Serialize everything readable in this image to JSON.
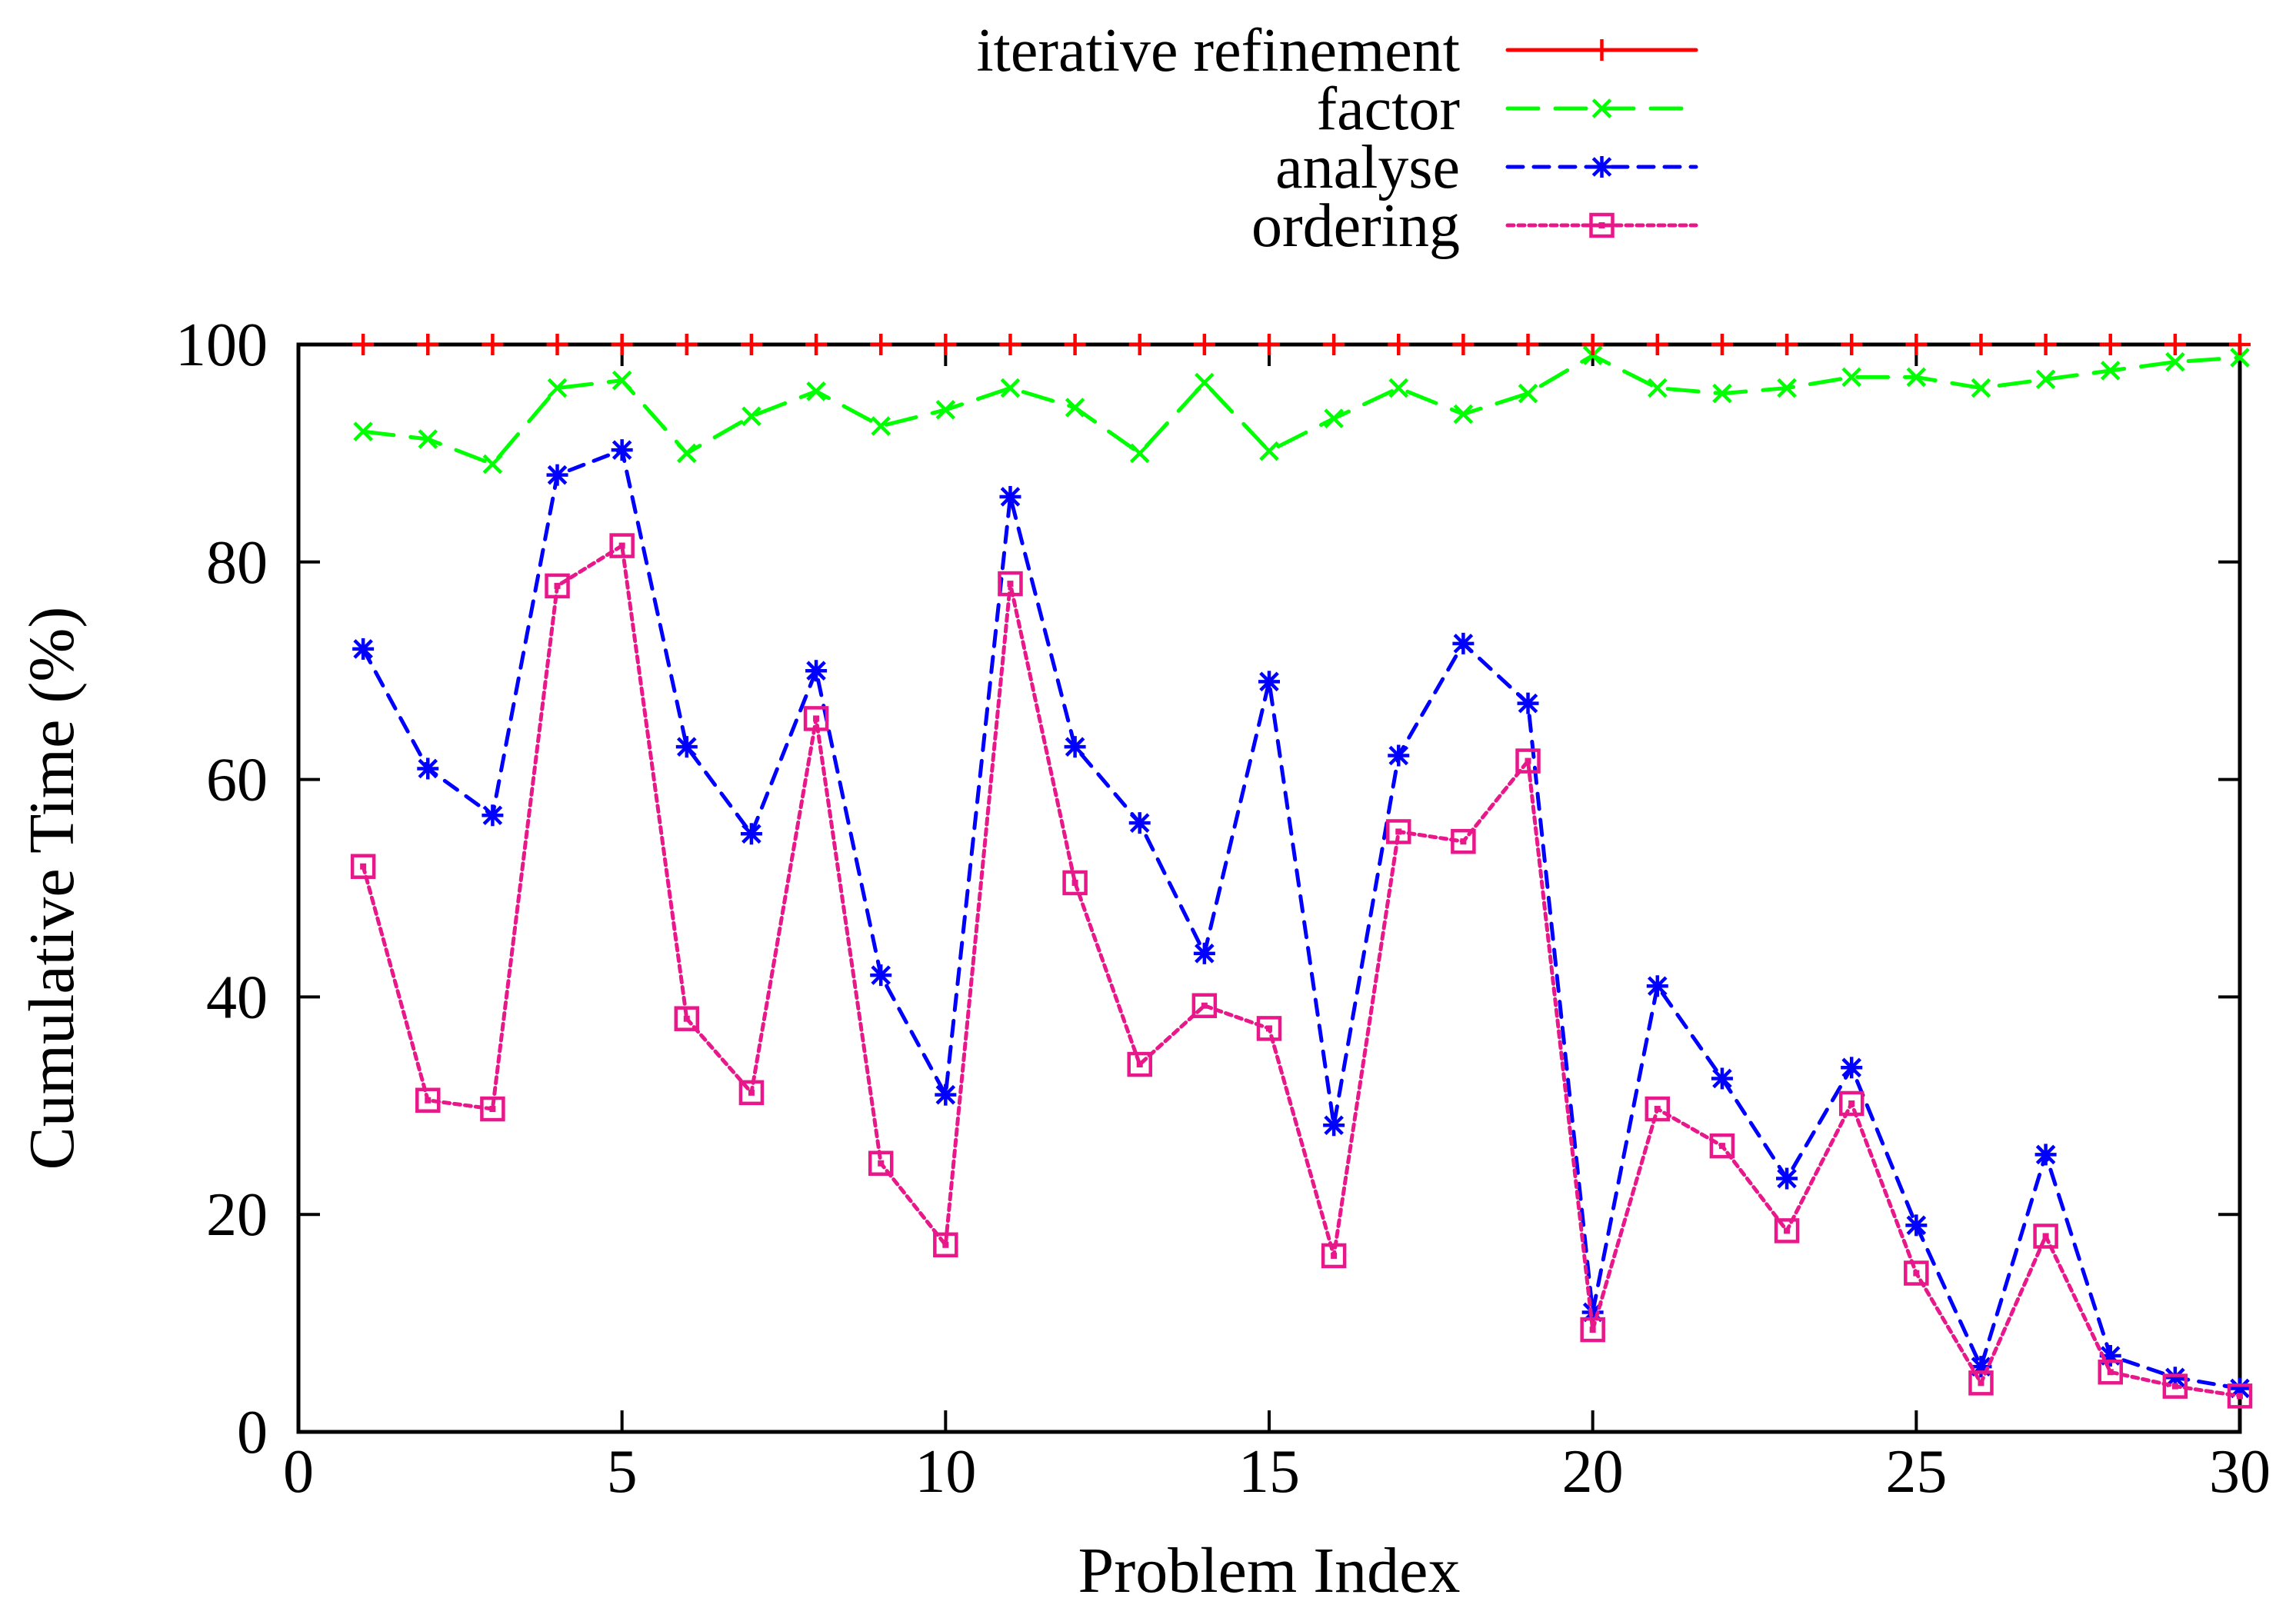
{
  "chart_data": {
    "type": "line",
    "title": "",
    "xlabel": "Problem Index",
    "ylabel": "Cumulative Time (%)",
    "xlim": [
      0,
      30
    ],
    "ylim": [
      0,
      100
    ],
    "xticks": [
      0,
      5,
      10,
      15,
      20,
      25,
      30
    ],
    "yticks": [
      0,
      20,
      40,
      60,
      80,
      100
    ],
    "grid": false,
    "legend_position": "top-center",
    "x": [
      1,
      2,
      3,
      4,
      5,
      6,
      7,
      8,
      9,
      10,
      11,
      12,
      13,
      14,
      15,
      16,
      17,
      18,
      19,
      20,
      21,
      22,
      23,
      24,
      25,
      26,
      27,
      28,
      29,
      30
    ],
    "series": [
      {
        "name": "iterative refinement",
        "color": "#ff0000",
        "dash": "solid",
        "marker": "plus",
        "values": [
          100,
          100,
          100,
          100,
          100,
          100,
          100,
          100,
          100,
          100,
          100,
          100,
          100,
          100,
          100,
          100,
          100,
          100,
          100,
          100,
          100,
          100,
          100,
          100,
          100,
          100,
          100,
          100,
          100,
          100
        ]
      },
      {
        "name": "factor",
        "color": "#00ff00",
        "dash": "dashed",
        "marker": "cross",
        "values": [
          92,
          91.3,
          89,
          96,
          96.7,
          90,
          93.4,
          95.7,
          92.5,
          94,
          96,
          94.2,
          90,
          96.5,
          90.2,
          93.2,
          96,
          93.6,
          95.5,
          99,
          96,
          95.5,
          96,
          97,
          97,
          96,
          96.8,
          97.6,
          98.4,
          98.8
        ]
      },
      {
        "name": "analyse",
        "color": "#0000ff",
        "dash": "short-dashed",
        "marker": "star",
        "values": [
          72,
          61,
          56.7,
          88,
          90.3,
          63,
          55,
          70,
          42,
          31,
          86,
          63,
          56,
          44,
          69,
          28.2,
          62.2,
          72.5,
          67,
          11,
          41,
          32.5,
          23.3,
          33.5,
          19,
          6,
          25.5,
          7,
          5,
          4
        ]
      },
      {
        "name": "ordering",
        "color": "#e8178a",
        "dash": "dotted",
        "marker": "square",
        "values": [
          52,
          30.5,
          29.7,
          77.8,
          81.5,
          38,
          31.2,
          65.6,
          24.7,
          17.2,
          78,
          50.5,
          33.8,
          39.2,
          37.1,
          16.2,
          55.2,
          54.3,
          61.7,
          9.4,
          29.7,
          26.3,
          18.5,
          30.2,
          14.6,
          4.5,
          18,
          5.5,
          4.2,
          3.3
        ]
      }
    ]
  }
}
